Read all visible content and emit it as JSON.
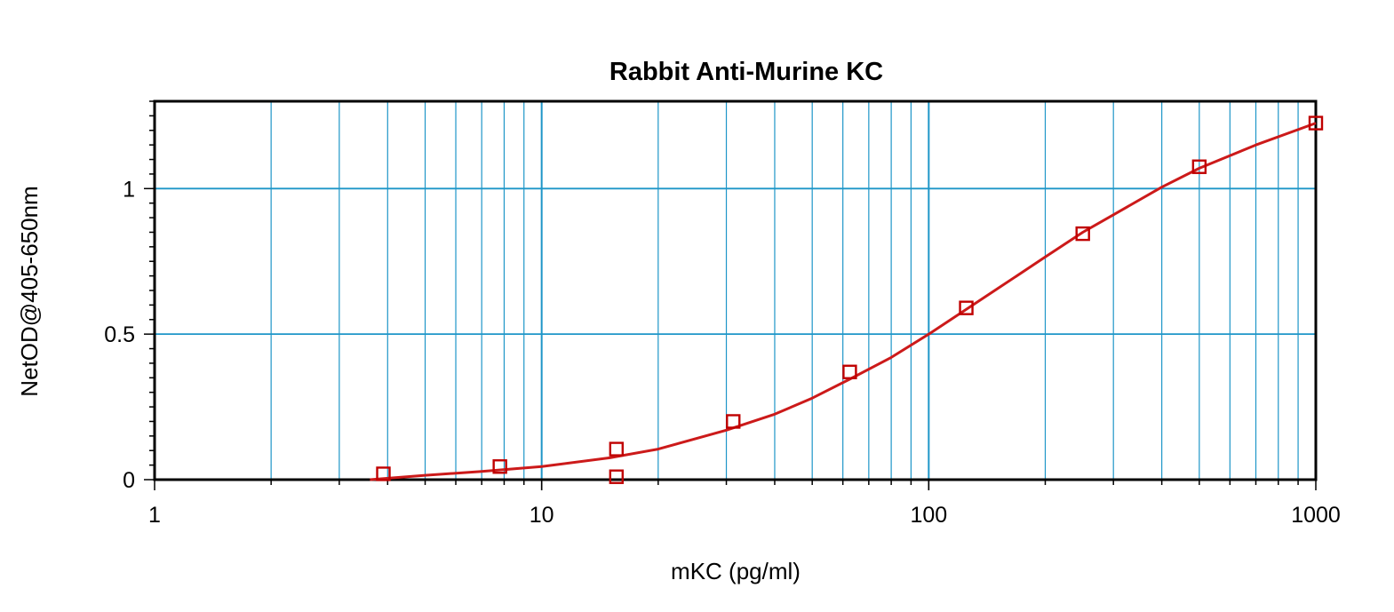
{
  "chart_data": {
    "type": "scatter",
    "title": "Rabbit Anti-Murine KC",
    "xlabel": "mKC (pg/ml)",
    "ylabel": "NetOD@405-650nm",
    "x_scale": "log",
    "xlim": [
      1,
      1000
    ],
    "ylim": [
      0,
      1.3
    ],
    "x_ticks": [
      "1",
      "10",
      "100",
      "1000"
    ],
    "y_ticks": [
      "0",
      "0.5",
      "1"
    ],
    "grid": true,
    "legend": "none",
    "series": [
      {
        "x": [
          3.9,
          7.8,
          15.6,
          15.6,
          31.25,
          62.5,
          125,
          250,
          500,
          1000
        ],
        "y": [
          0.02,
          0.045,
          0.01,
          0.105,
          0.2,
          0.37,
          0.59,
          0.845,
          1.075,
          1.225
        ]
      }
    ],
    "fit_curve": {
      "x": [
        3.6,
        5,
        7,
        10,
        15,
        20,
        30,
        40,
        50,
        62.5,
        80,
        100,
        125,
        150,
        200,
        250,
        300,
        400,
        500,
        700,
        1000
      ],
      "y": [
        0.0,
        0.015,
        0.028,
        0.045,
        0.075,
        0.105,
        0.17,
        0.225,
        0.28,
        0.345,
        0.42,
        0.5,
        0.585,
        0.655,
        0.765,
        0.85,
        0.91,
        1.005,
        1.07,
        1.15,
        1.225
      ]
    },
    "colors": {
      "grid": "#1e96c8",
      "marker": "#c00000",
      "curve": "#cc1a1a",
      "axis": "#000000"
    }
  }
}
